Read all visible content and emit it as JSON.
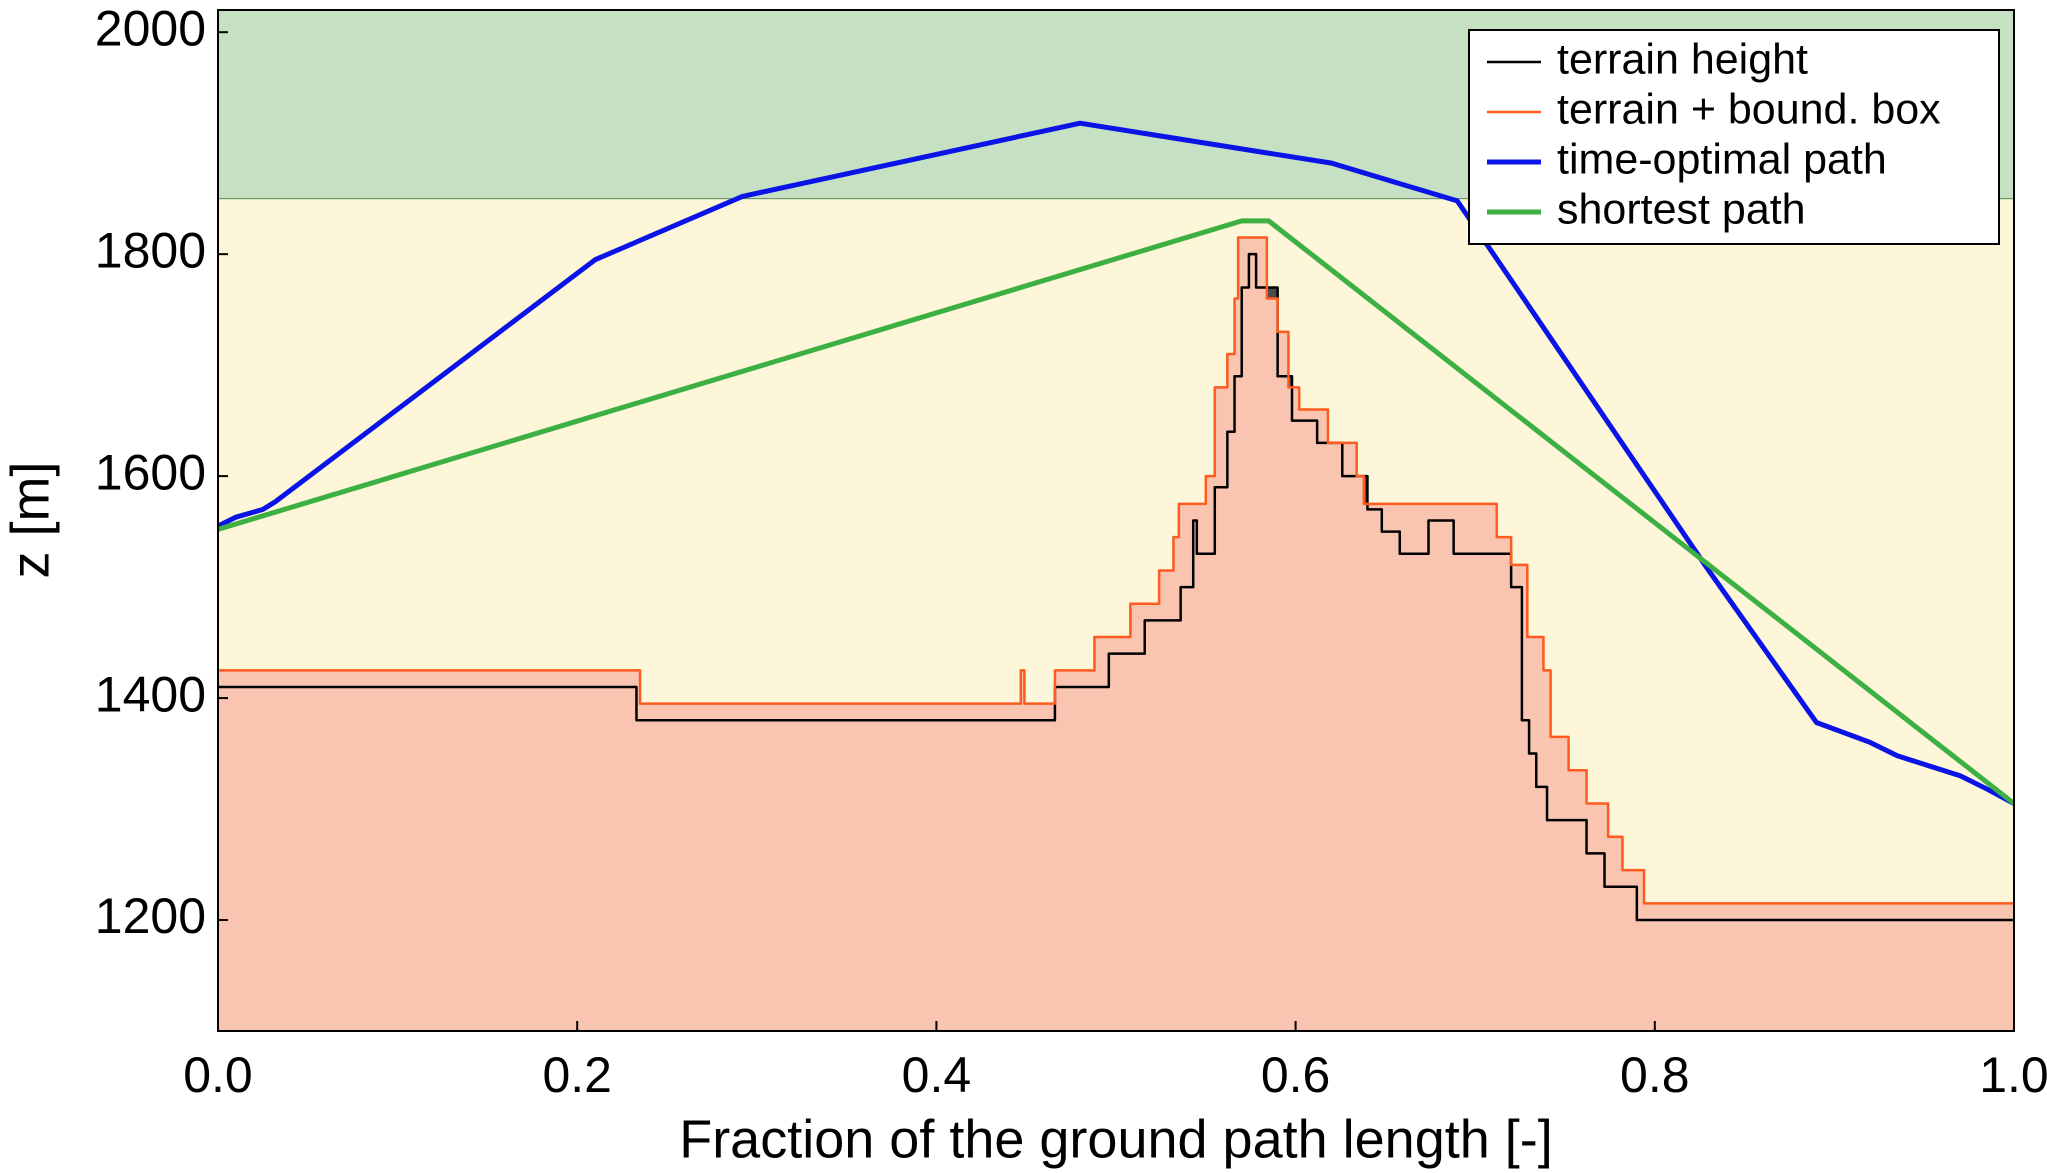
{
  "chart_data": {
    "type": "line",
    "xlabel": "Fraction of the ground path length [-]",
    "ylabel": "z [m]",
    "xlim": [
      0,
      1
    ],
    "ylim": [
      1100,
      2020
    ],
    "xticks": [
      {
        "value": 0,
        "label": "0.0"
      },
      0.2,
      0.4,
      0.6,
      0.8,
      {
        "value": 1,
        "label": "1.0"
      }
    ],
    "yticks": [
      1200,
      1400,
      1600,
      1800,
      2000
    ],
    "background_color": "#fdf6d8",
    "upper_band": {
      "from": 1850,
      "color": "#c6e0c4"
    },
    "legend_loc": "upper right",
    "series": [
      {
        "name": "terrain height",
        "color": "#000000",
        "fill": "#4d4d4d",
        "step": true,
        "x": [
          0,
          0.233,
          0.466,
          0.496,
          0.516,
          0.536,
          0.543,
          0.545,
          0.555,
          0.562,
          0.566,
          0.57,
          0.574,
          0.578,
          0.59,
          0.598,
          0.612,
          0.626,
          0.64,
          0.648,
          0.658,
          0.674,
          0.688,
          0.72,
          0.726,
          0.73,
          0.734,
          0.74,
          0.762,
          0.772,
          0.79,
          1.0
        ],
        "values": [
          1410,
          1380,
          1410,
          1440,
          1470,
          1500,
          1560,
          1530,
          1590,
          1640,
          1690,
          1770,
          1800,
          1770,
          1690,
          1650,
          1630,
          1600,
          1570,
          1550,
          1530,
          1560,
          1530,
          1500,
          1380,
          1350,
          1320,
          1290,
          1260,
          1230,
          1200,
          1200
        ]
      },
      {
        "name": "terrain + bound. box",
        "color": "#ff5a1f",
        "fill": "#f9c4b0",
        "step": true,
        "x": [
          0,
          0.235,
          0.447,
          0.449,
          0.452,
          0.466,
          0.488,
          0.508,
          0.524,
          0.532,
          0.535,
          0.55,
          0.555,
          0.562,
          0.566,
          0.568,
          0.584,
          0.59,
          0.596,
          0.602,
          0.618,
          0.634,
          0.638,
          0.712,
          0.72,
          0.729,
          0.738,
          0.742,
          0.752,
          0.762,
          0.774,
          0.782,
          0.794,
          1.0
        ],
        "values": [
          1425,
          1395,
          1425,
          1395,
          1395,
          1425,
          1455,
          1485,
          1515,
          1545,
          1575,
          1600,
          1680,
          1710,
          1760,
          1815,
          1760,
          1730,
          1680,
          1660,
          1630,
          1600,
          1575,
          1545,
          1520,
          1455,
          1425,
          1365,
          1335,
          1305,
          1275,
          1245,
          1215,
          1215
        ]
      },
      {
        "name": "time-optimal path",
        "color": "#0a14e6",
        "x": [
          0,
          0.01,
          0.025,
          0.032,
          0.21,
          0.292,
          0.48,
          0.62,
          0.69,
          0.83,
          0.89,
          0.92,
          0.935,
          0.97,
          0.985,
          1.0
        ],
        "values": [
          1555,
          1563,
          1570,
          1577,
          1795,
          1852,
          1918,
          1882,
          1848,
          1515,
          1378,
          1360,
          1348,
          1330,
          1318,
          1305
        ]
      },
      {
        "name": "shortest path",
        "color": "#3cb043",
        "x": [
          0,
          0.57,
          0.585,
          1.0
        ],
        "values": [
          1552,
          1830,
          1830,
          1305
        ]
      }
    ]
  }
}
